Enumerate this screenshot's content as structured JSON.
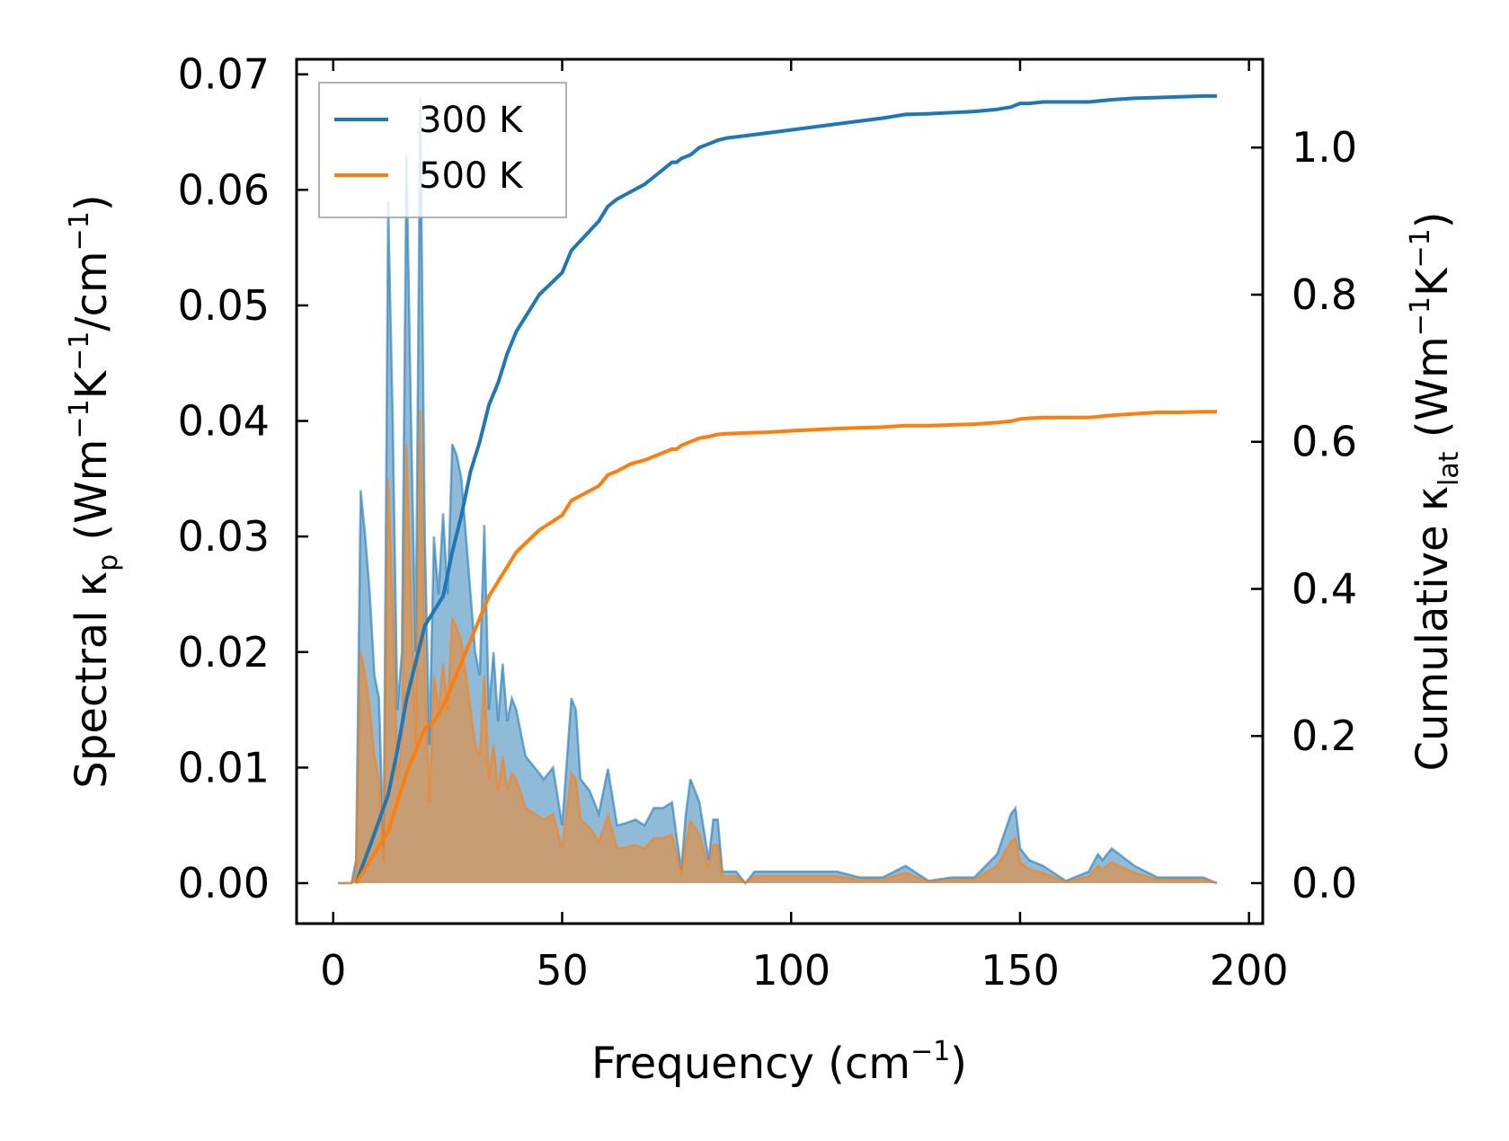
{
  "chart_data": {
    "type": "line",
    "xlabel": {
      "main": "Frequency (cm",
      "sup": "−1",
      "tail": ")"
    },
    "ylabel_left": {
      "parts": [
        {
          "t": "Spectral κ"
        },
        {
          "t": "p",
          "sub": true
        },
        {
          "t": " (Wm"
        },
        {
          "t": "−1",
          "sup": true
        },
        {
          "t": "K"
        },
        {
          "t": "−1",
          "sup": true
        },
        {
          "t": "/cm"
        },
        {
          "t": "−1",
          "sup": true
        },
        {
          "t": ")"
        }
      ]
    },
    "ylabel_right": {
      "parts": [
        {
          "t": "Cumulative κ"
        },
        {
          "t": "lat",
          "sub": true
        },
        {
          "t": " (Wm"
        },
        {
          "t": "−1",
          "sup": true
        },
        {
          "t": "K"
        },
        {
          "t": "−1",
          "sup": true
        },
        {
          "t": ")"
        }
      ]
    },
    "xlim": [
      -8,
      203
    ],
    "ylim_left": [
      -0.0035,
      0.0713
    ],
    "ylim_right": [
      -0.055,
      1.12
    ],
    "xticks": [
      0,
      50,
      100,
      150,
      200
    ],
    "xtick_labels": [
      "0",
      "50",
      "100",
      "150",
      "200"
    ],
    "yticks_left": [
      0,
      0.01,
      0.02,
      0.03,
      0.04,
      0.05,
      0.06,
      0.07
    ],
    "ytick_labels_left": [
      "0.00",
      "0.01",
      "0.02",
      "0.03",
      "0.04",
      "0.05",
      "0.06",
      "0.07"
    ],
    "yticks_right": [
      0,
      0.2,
      0.4,
      0.6,
      0.8,
      1.0
    ],
    "ytick_labels_right": [
      "0.0",
      "0.2",
      "0.4",
      "0.6",
      "0.8",
      "1.0"
    ],
    "legend_position": "top-left",
    "grid": false,
    "series": [
      {
        "name": "300 K",
        "color": "#1f77b4",
        "fill_color": "#1f77b4",
        "spectral": {
          "x": [
            1,
            2,
            3,
            4,
            5,
            6,
            7,
            8,
            9,
            10,
            11,
            12,
            13,
            14,
            15,
            16,
            17,
            18,
            19,
            20,
            21,
            22,
            23,
            24,
            25,
            26,
            27,
            28,
            29,
            30,
            31,
            32,
            33,
            34,
            35,
            36,
            37,
            38,
            39,
            40,
            42,
            44,
            46,
            48,
            50,
            52,
            53,
            54,
            56,
            58,
            60,
            62,
            64,
            66,
            68,
            70,
            72,
            74,
            75,
            76,
            77,
            78,
            80,
            82,
            83,
            84,
            85,
            86,
            88,
            90,
            92,
            95,
            100,
            105,
            110,
            115,
            120,
            125,
            130,
            135,
            140,
            145,
            148,
            149,
            150,
            152,
            155,
            160,
            165,
            167,
            168,
            170,
            175,
            180,
            185,
            190,
            193
          ],
          "y": [
            0,
            0,
            0,
            0,
            0.002,
            0.034,
            0.03,
            0.025,
            0.018,
            0.016,
            0.003,
            0.059,
            0.04,
            0.015,
            0.02,
            0.063,
            0.04,
            0.02,
            0.068,
            0.03,
            0.012,
            0.03,
            0.025,
            0.032,
            0.025,
            0.038,
            0.037,
            0.035,
            0.03,
            0.025,
            0.02,
            0.018,
            0.031,
            0.015,
            0.02,
            0.014,
            0.019,
            0.014,
            0.016,
            0.015,
            0.011,
            0.01,
            0.009,
            0.01,
            0.005,
            0.016,
            0.015,
            0.009,
            0.008,
            0.006,
            0.0099,
            0.005,
            0.0052,
            0.0055,
            0.005,
            0.0065,
            0.0065,
            0.007,
            0.004,
            0.0012,
            0.006,
            0.009,
            0.007,
            0.002,
            0.0055,
            0.0055,
            0.001,
            0.001,
            0.001,
            0,
            0.001,
            0.001,
            0.001,
            0.001,
            0.001,
            0.0005,
            0.0005,
            0.0015,
            0.0002,
            0.0005,
            0.0005,
            0.0025,
            0.006,
            0.0065,
            0.003,
            0.002,
            0.0015,
            0.0002,
            0.001,
            0.0025,
            0.002,
            0.003,
            0.0015,
            0.0005,
            0.0005,
            0.0005,
            0
          ]
        },
        "cumulative": {
          "x": [
            5,
            8,
            12,
            14,
            16,
            18,
            20,
            22,
            24,
            26,
            28,
            30,
            32,
            34,
            36,
            38,
            40,
            45,
            50,
            52,
            55,
            58,
            60,
            62,
            65,
            68,
            70,
            72,
            74,
            75,
            76,
            78,
            80,
            82,
            84,
            86,
            90,
            95,
            100,
            110,
            120,
            125,
            130,
            140,
            145,
            148,
            150,
            152,
            155,
            160,
            165,
            170,
            175,
            180,
            185,
            190,
            193
          ],
          "y": [
            0,
            0.05,
            0.12,
            0.18,
            0.25,
            0.3,
            0.35,
            0.37,
            0.39,
            0.45,
            0.5,
            0.56,
            0.6,
            0.65,
            0.68,
            0.72,
            0.75,
            0.8,
            0.83,
            0.86,
            0.88,
            0.9,
            0.92,
            0.93,
            0.94,
            0.95,
            0.96,
            0.97,
            0.98,
            0.98,
            0.985,
            0.99,
            1.0,
            1.005,
            1.01,
            1.013,
            1.016,
            1.02,
            1.024,
            1.032,
            1.04,
            1.045,
            1.046,
            1.049,
            1.052,
            1.055,
            1.06,
            1.06,
            1.062,
            1.062,
            1.062,
            1.065,
            1.067,
            1.068,
            1.069,
            1.07,
            1.07
          ]
        }
      },
      {
        "name": "500 K",
        "color": "#ff7f0e",
        "fill_color": "#ff7f0e",
        "spectral": {
          "x": [
            1,
            2,
            3,
            4,
            5,
            6,
            7,
            8,
            9,
            10,
            11,
            12,
            13,
            14,
            15,
            16,
            17,
            18,
            19,
            20,
            21,
            22,
            23,
            24,
            25,
            26,
            27,
            28,
            29,
            30,
            31,
            32,
            33,
            34,
            35,
            36,
            37,
            38,
            39,
            40,
            42,
            44,
            46,
            48,
            50,
            52,
            53,
            54,
            56,
            58,
            60,
            62,
            64,
            66,
            68,
            70,
            72,
            74,
            75,
            76,
            77,
            78,
            80,
            82,
            83,
            84,
            85,
            86,
            88,
            90,
            92,
            95,
            100,
            105,
            110,
            115,
            120,
            125,
            130,
            135,
            140,
            145,
            148,
            149,
            150,
            152,
            155,
            160,
            165,
            167,
            168,
            170,
            175,
            180,
            185,
            190,
            193
          ],
          "y": [
            0,
            0,
            0,
            0,
            0.001,
            0.02,
            0.018,
            0.015,
            0.011,
            0.009,
            0.002,
            0.035,
            0.024,
            0.009,
            0.012,
            0.038,
            0.024,
            0.012,
            0.041,
            0.018,
            0.007,
            0.018,
            0.015,
            0.019,
            0.015,
            0.023,
            0.022,
            0.021,
            0.018,
            0.015,
            0.012,
            0.011,
            0.018,
            0.009,
            0.012,
            0.008,
            0.011,
            0.008,
            0.0095,
            0.009,
            0.0065,
            0.006,
            0.0055,
            0.006,
            0.003,
            0.0095,
            0.009,
            0.0055,
            0.0048,
            0.0036,
            0.0059,
            0.003,
            0.0031,
            0.0033,
            0.003,
            0.0039,
            0.0039,
            0.0042,
            0.0024,
            0.0007,
            0.0036,
            0.0054,
            0.0042,
            0.0012,
            0.0033,
            0.0033,
            0.0006,
            0.0006,
            0.0006,
            0,
            0.0006,
            0.0006,
            0.0006,
            0.0006,
            0.0006,
            0.0003,
            0.0003,
            0.0009,
            0.0001,
            0.0003,
            0.0003,
            0.0015,
            0.0036,
            0.0039,
            0.0018,
            0.0012,
            0.0009,
            0.0001,
            0.0006,
            0.0015,
            0.0012,
            0.0018,
            0.0009,
            0.0003,
            0.0003,
            0.0003,
            0
          ]
        },
        "cumulative": {
          "x": [
            5,
            8,
            12,
            14,
            16,
            18,
            20,
            22,
            24,
            26,
            28,
            30,
            32,
            34,
            36,
            38,
            40,
            45,
            50,
            52,
            55,
            58,
            60,
            62,
            65,
            68,
            70,
            72,
            74,
            75,
            76,
            78,
            80,
            82,
            84,
            86,
            90,
            95,
            100,
            110,
            120,
            125,
            130,
            140,
            145,
            148,
            150,
            152,
            155,
            160,
            165,
            170,
            175,
            180,
            185,
            190,
            193
          ],
          "y": [
            0,
            0.03,
            0.07,
            0.11,
            0.15,
            0.18,
            0.21,
            0.22,
            0.24,
            0.27,
            0.3,
            0.33,
            0.36,
            0.39,
            0.41,
            0.43,
            0.45,
            0.48,
            0.5,
            0.52,
            0.53,
            0.54,
            0.555,
            0.56,
            0.57,
            0.575,
            0.58,
            0.585,
            0.59,
            0.59,
            0.595,
            0.6,
            0.605,
            0.607,
            0.61,
            0.611,
            0.612,
            0.613,
            0.615,
            0.618,
            0.62,
            0.622,
            0.622,
            0.624,
            0.626,
            0.628,
            0.631,
            0.632,
            0.633,
            0.633,
            0.633,
            0.636,
            0.638,
            0.64,
            0.64,
            0.641,
            0.641
          ]
        }
      }
    ]
  }
}
